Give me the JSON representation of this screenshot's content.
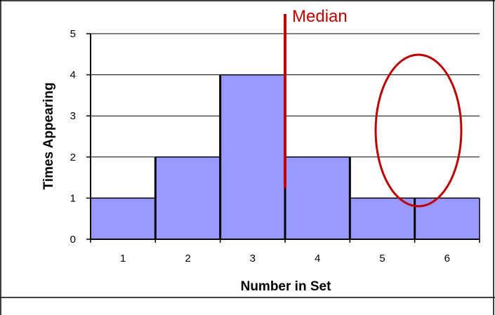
{
  "chart_data": {
    "type": "bar",
    "categories": [
      "1",
      "2",
      "3",
      "4",
      "5",
      "6"
    ],
    "values": [
      1,
      2,
      4,
      2,
      1,
      1
    ],
    "xlabel": "Number in Set",
    "ylabel": "Times Appearing",
    "ylim": [
      0,
      5
    ],
    "yticks": [
      "0",
      "1",
      "2",
      "3",
      "4",
      "5"
    ],
    "grid": true,
    "bar_color": "#9999ff",
    "annotations": {
      "median_label": "Median",
      "median_x": 3.5,
      "marker_color": "#c00000"
    }
  }
}
